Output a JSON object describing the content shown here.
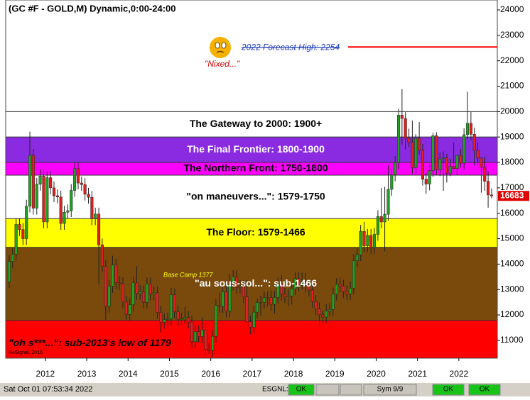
{
  "chart_data": {
    "type": "candlestick",
    "title": "(GC #F - GOLD,M) Dynamic,0:00-24:00",
    "x": [
      2011.125,
      2011.208,
      2011.292,
      2011.375,
      2011.458,
      2011.542,
      2011.625,
      2011.708,
      2011.792,
      2011.875,
      2011.958,
      2012.042,
      2012.125,
      2012.208,
      2012.292,
      2012.375,
      2012.458,
      2012.542,
      2012.625,
      2012.708,
      2012.792,
      2012.875,
      2012.958,
      2013.042,
      2013.125,
      2013.208,
      2013.292,
      2013.375,
      2013.458,
      2013.542,
      2013.625,
      2013.708,
      2013.792,
      2013.875,
      2013.958,
      2014.042,
      2014.125,
      2014.208,
      2014.292,
      2014.375,
      2014.458,
      2014.542,
      2014.625,
      2014.708,
      2014.792,
      2014.875,
      2014.958,
      2015.042,
      2015.125,
      2015.208,
      2015.292,
      2015.375,
      2015.458,
      2015.542,
      2015.625,
      2015.708,
      2015.792,
      2015.875,
      2015.958,
      2016.042,
      2016.125,
      2016.208,
      2016.292,
      2016.375,
      2016.458,
      2016.542,
      2016.625,
      2016.708,
      2016.792,
      2016.875,
      2016.958,
      2017.042,
      2017.125,
      2017.208,
      2017.292,
      2017.375,
      2017.458,
      2017.542,
      2017.625,
      2017.708,
      2017.792,
      2017.875,
      2017.958,
      2018.042,
      2018.125,
      2018.208,
      2018.292,
      2018.375,
      2018.458,
      2018.542,
      2018.625,
      2018.708,
      2018.792,
      2018.875,
      2018.958,
      2019.042,
      2019.125,
      2019.208,
      2019.292,
      2019.375,
      2019.458,
      2019.542,
      2019.625,
      2019.708,
      2019.792,
      2019.875,
      2019.958,
      2020.042,
      2020.125,
      2020.208,
      2020.292,
      2020.375,
      2020.458,
      2020.542,
      2020.625,
      2020.708,
      2020.792,
      2020.875,
      2020.958,
      2021.042,
      2021.125,
      2021.208,
      2021.292,
      2021.375,
      2021.458,
      2021.542,
      2021.625,
      2021.708,
      2021.792,
      2021.875,
      2021.958,
      2022.042,
      2022.125,
      2022.208,
      2022.292,
      2022.375,
      2022.458,
      2022.542,
      2022.625,
      2022.708,
      2022.792
    ],
    "open": [
      13300,
      14100,
      14390,
      15560,
      15360,
      15000,
      16280,
      18280,
      16200,
      17140,
      17460,
      15660,
      17400,
      17000,
      16690,
      16640,
      15600,
      16040,
      16100,
      16900,
      17760,
      17190,
      17130,
      16750,
      16630,
      15780,
      15970,
      14760,
      13920,
      12340,
      13130,
      13960,
      13270,
      13230,
      12510,
      12020,
      12400,
      13260,
      12840,
      12910,
      12500,
      13220,
      12820,
      12870,
      12100,
      11710,
      11820,
      11840,
      12790,
      12120,
      11830,
      11840,
      11900,
      11720,
      10950,
      11340,
      11150,
      11410,
      10650,
      10600,
      11160,
      12370,
      12330,
      12910,
      12150,
      13210,
      13500,
      13090,
      13130,
      12710,
      11730,
      11520,
      12110,
      12490,
      12490,
      12680,
      12680,
      12420,
      12690,
      13220,
      12810,
      12710,
      12750,
      13030,
      13430,
      13180,
      13250,
      13150,
      12980,
      12530,
      12240,
      12010,
      11920,
      12150,
      12220,
      12820,
      13200,
      13130,
      12920,
      12830,
      13050,
      14130,
      14370,
      15290,
      14720,
      15130,
      14640,
      15170,
      15870,
      15660,
      15960,
      16940,
      17510,
      18000,
      19860,
      19730,
      18950,
      18790,
      17800,
      18950,
      18480,
      17340,
      17150,
      17680,
      19050,
      17710,
      18140,
      18180,
      17570,
      17840,
      17760,
      18280,
      17970,
      19090,
      19540,
      19110,
      18480,
      18170,
      17810,
      17260,
      16720
    ],
    "high": [
      14350,
      14640,
      15810,
      15810,
      15610,
      16530,
      19210,
      18530,
      17390,
      17710,
      17710,
      17650,
      17650,
      17250,
      16940,
      16890,
      16290,
      16350,
      17150,
      18010,
      18010,
      17440,
      17380,
      17000,
      16880,
      16220,
      16220,
      15010,
      14170,
      13380,
      14330,
      14210,
      13520,
      13480,
      12760,
      12650,
      13510,
      13920,
      13160,
      13160,
      13470,
      13470,
      13120,
      13120,
      12350,
      12070,
      12090,
      13070,
      13040,
      12370,
      12090,
      12320,
      12150,
      11970,
      11590,
      11590,
      11910,
      11660,
      10900,
      11410,
      12620,
      12870,
      13100,
      13160,
      13620,
      13750,
      13750,
      13380,
      13380,
      13370,
      11980,
      12360,
      12640,
      12740,
      12930,
      12930,
      12960,
      12940,
      13470,
      13570,
      13060,
      13000,
      13280,
      13680,
      13680,
      13660,
      13650,
      13400,
      13230,
      12780,
      12490,
      12150,
      12430,
      12470,
      13070,
      13450,
      13460,
      13380,
      13170,
      13300,
      14380,
      14620,
      15540,
      15660,
      15380,
      15380,
      15420,
      16120,
      17000,
      17040,
      17880,
      17760,
      18250,
      20110,
      20890,
      19980,
      19330,
      19650,
      19110,
      19590,
      18730,
      17590,
      17930,
      19160,
      19190,
      18390,
      18430,
      18340,
      18150,
      18770,
      18310,
      18530,
      19340,
      20780,
      19980,
      19360,
      18790,
      18210,
      18240,
      17650,
      16980
    ],
    "low": [
      13050,
      13850,
      14140,
      15110,
      14750,
      14750,
      16030,
      15950,
      15950,
      16890,
      15410,
      15410,
      16750,
      16440,
      16390,
      15350,
      15350,
      15790,
      15850,
      16650,
      16940,
      16880,
      16500,
      16380,
      15530,
      15530,
      13210,
      13670,
      11800,
      12090,
      12870,
      13020,
      12980,
      12260,
      11800,
      11770,
      12150,
      12590,
      12590,
      12250,
      12250,
      12570,
      12570,
      11850,
      11310,
      11460,
      11570,
      11590,
      11870,
      11580,
      11580,
      11650,
      11470,
      10700,
      10700,
      10900,
      10900,
      10400,
      10470,
      10350,
      10910,
      12080,
      12080,
      11900,
      11900,
      12960,
      12840,
      12840,
      12460,
      11710,
      11240,
      11270,
      11860,
      11950,
      12240,
      12330,
      12170,
      12040,
      12440,
      12560,
      12460,
      12360,
      12410,
      12780,
      12930,
      13000,
      12900,
      12730,
      12280,
      11990,
      11600,
      11700,
      11670,
      11960,
      11970,
      12570,
      12880,
      12670,
      12580,
      12580,
      12800,
      13880,
      14120,
      14470,
      14470,
      14390,
      14390,
      14920,
      15410,
      14500,
      15710,
      16690,
      17260,
      17750,
      18700,
      18490,
      18600,
      17550,
      17550,
      18300,
      17090,
      16760,
      16900,
      17430,
      17500,
      17460,
      16880,
      17210,
      17460,
      17600,
      17520,
      17800,
      17720,
      18900,
      18870,
      17870,
      17840,
      16810,
      16880,
      16220,
      16600
    ],
    "close": [
      14100,
      14390,
      15560,
      15360,
      15000,
      16280,
      18280,
      16200,
      17140,
      17460,
      15660,
      17400,
      17000,
      16690,
      16640,
      15600,
      16040,
      16100,
      16900,
      17760,
      17190,
      17130,
      16750,
      16630,
      15780,
      15970,
      14760,
      13920,
      12340,
      13130,
      13960,
      13270,
      13230,
      12510,
      12020,
      12400,
      13260,
      12840,
      12910,
      12500,
      13220,
      12820,
      12870,
      12100,
      11710,
      11820,
      11840,
      12790,
      12120,
      11830,
      11840,
      11900,
      11720,
      10950,
      11340,
      11150,
      11410,
      10650,
      10600,
      11160,
      12370,
      12330,
      12910,
      12150,
      13210,
      13500,
      13090,
      13130,
      12710,
      11730,
      11520,
      12110,
      12490,
      12490,
      12680,
      12680,
      12420,
      12690,
      13220,
      12810,
      12710,
      12750,
      13030,
      13430,
      13180,
      13250,
      13150,
      12980,
      12530,
      12240,
      12010,
      11920,
      12150,
      12220,
      12820,
      13200,
      13130,
      12920,
      12830,
      13050,
      14130,
      14370,
      15290,
      14720,
      15130,
      14640,
      15170,
      15870,
      15660,
      15960,
      16940,
      17510,
      18000,
      19860,
      19730,
      18950,
      18790,
      17800,
      18950,
      18480,
      17340,
      17150,
      17680,
      19050,
      17710,
      18140,
      18180,
      17570,
      17840,
      17760,
      18280,
      17970,
      19090,
      19540,
      19110,
      18480,
      18170,
      17810,
      17260,
      16720,
      16683
    ],
    "up_color": "#22a022",
    "down_color": "#e02020",
    "xlim": [
      2011.04,
      2022.93
    ],
    "xticks": [
      2012,
      2013,
      2014,
      2015,
      2016,
      2017,
      2018,
      2019,
      2020,
      2021,
      2022
    ],
    "ylim": [
      10300,
      24390
    ],
    "yticks": [
      11000,
      12000,
      13000,
      14000,
      15000,
      16000,
      17000,
      18000,
      19000,
      20000,
      21000,
      22000,
      23000,
      24000
    ],
    "bands": [
      {
        "label": "The Gateway to 2000:  1900+",
        "low": 19000,
        "high": 20000,
        "color": "#ffffff",
        "text_color": "#000000",
        "align": "center"
      },
      {
        "label": "The Final Frontier:  1800-1900",
        "low": 18000,
        "high": 19000,
        "color": "#8a2be2",
        "text_color": "#ffffff",
        "align": "center"
      },
      {
        "label": "The Northern Front:  1750-1800",
        "low": 17500,
        "high": 18000,
        "color": "#ff00ff",
        "text_color": "#000000",
        "align": "center"
      },
      {
        "label": "\"on maneuvers...\":  1579-1750",
        "low": 15790,
        "high": 17500,
        "color": "#ffffff",
        "text_color": "#000000",
        "align": "center"
      },
      {
        "label": "The Floor:  1579-1466",
        "low": 14660,
        "high": 15790,
        "color": "#ffff00",
        "text_color": "#000000",
        "align": "center"
      },
      {
        "label": "\"au sous-sol...\":  sub-1466",
        "low": 11790,
        "high": 14660,
        "color": "#7a4a0c",
        "text_color": "#ffffff",
        "align": "center"
      },
      {
        "label": "\"oh s***...\":  sub-2013's low of 1179",
        "low": 10300,
        "high": 11790,
        "color": "#ff0000",
        "text_color": "#000000",
        "align": "left"
      }
    ],
    "forecast": {
      "label": "2022 Forecast High:  2254",
      "value": 22540,
      "color": "#ff0000"
    },
    "annotations": {
      "nixed": "\"Nixed...\"",
      "base_camp": "Base Camp 1377",
      "copyright": "©eSignal, 2016"
    }
  },
  "status_bar": {
    "datetime": "Sat Oct 01 07:53:34 2022",
    "feed": "ESGNL:",
    "feed_status": "OK",
    "symbols": "Sym 9/9",
    "status_2": "OK",
    "status_3": "OK"
  }
}
